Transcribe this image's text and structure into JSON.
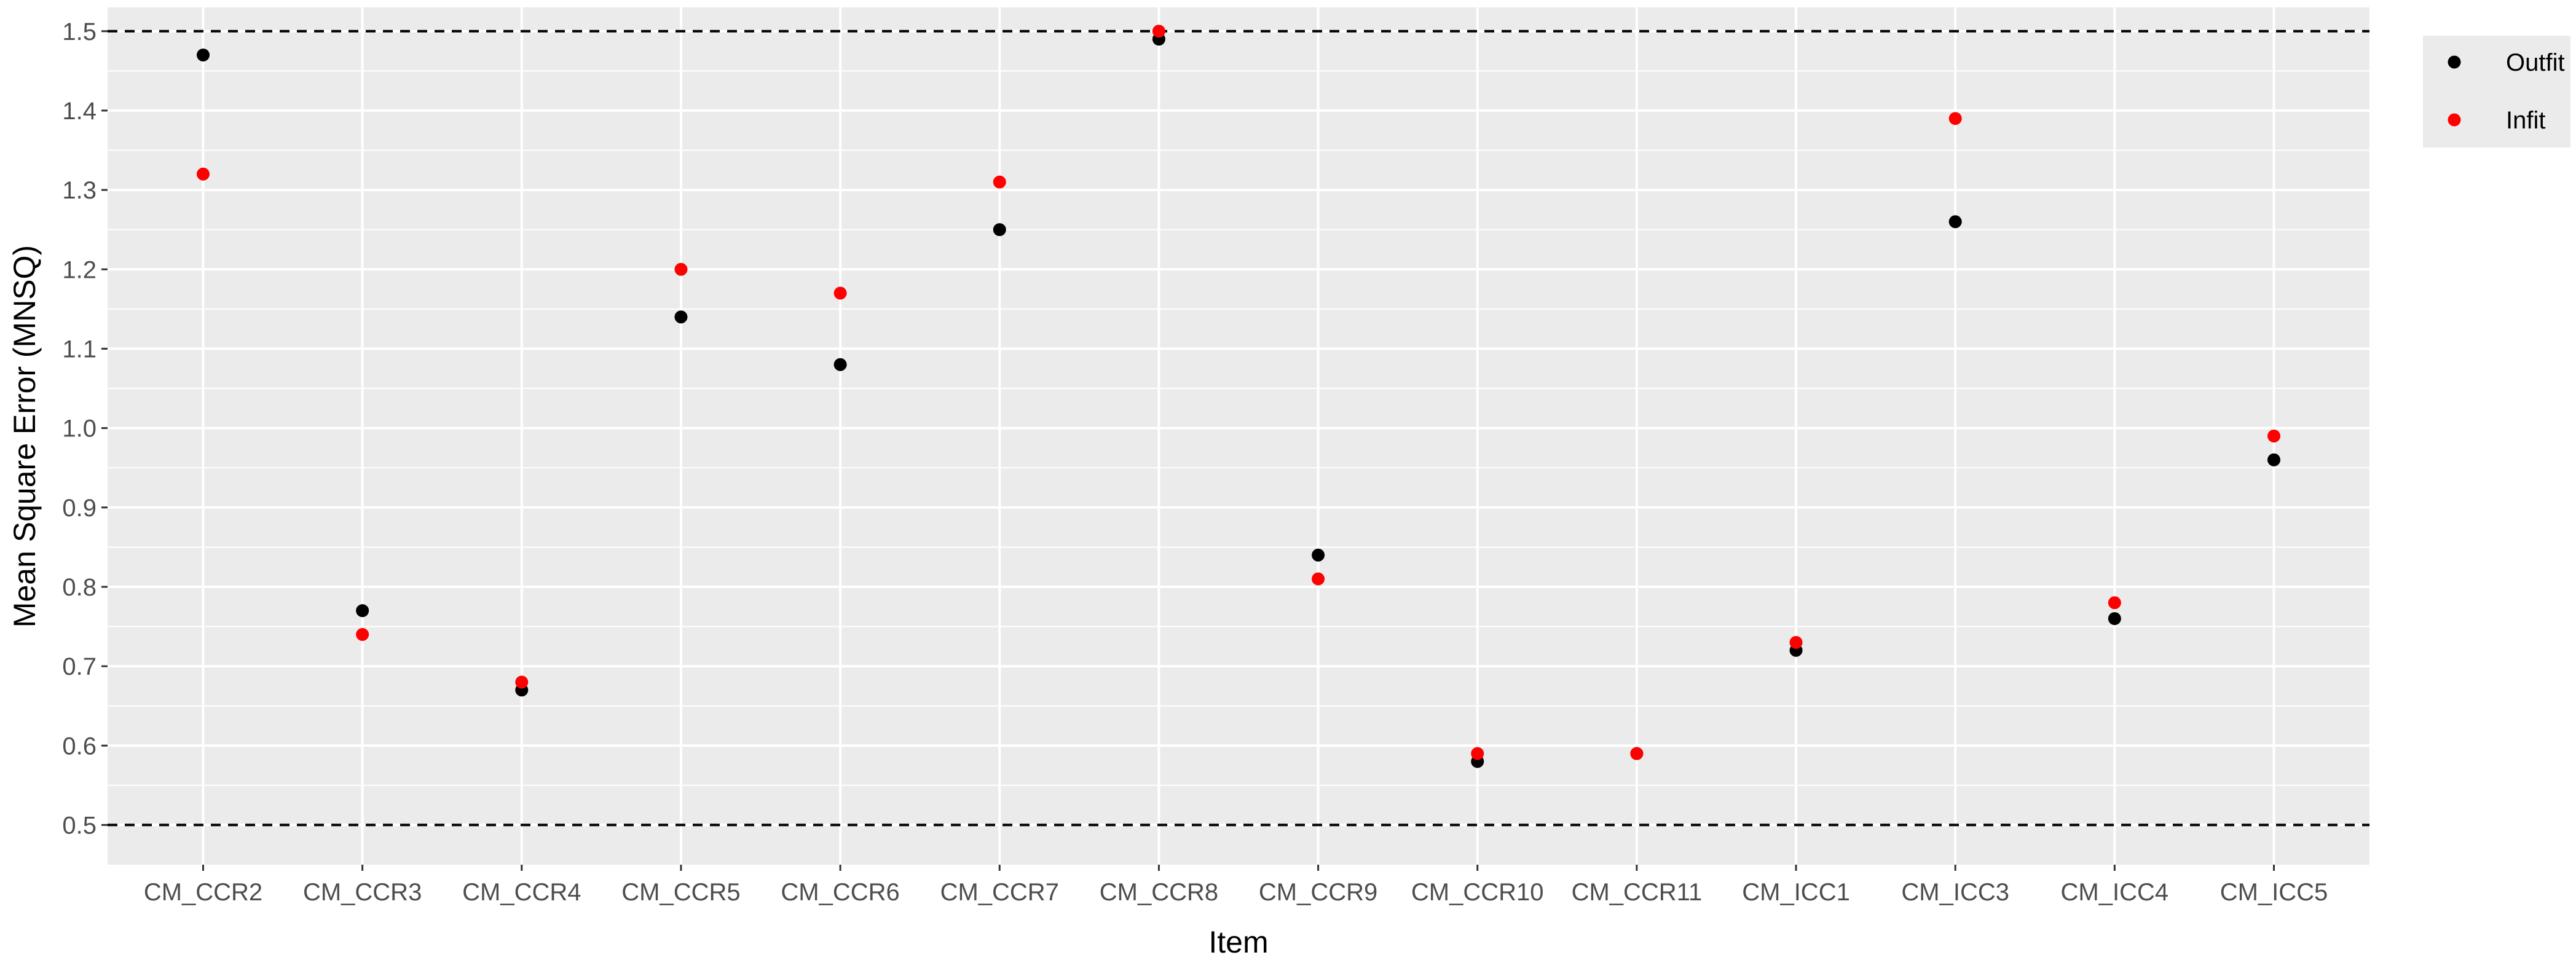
{
  "chart_data": {
    "type": "scatter",
    "title": "",
    "xlabel": "Item",
    "ylabel": "Mean Square Error (MNSQ)",
    "ylim": [
      0.45,
      1.53
    ],
    "yticks": [
      0.5,
      0.6,
      0.7,
      0.8,
      0.9,
      1.0,
      1.1,
      1.2,
      1.3,
      1.4,
      1.5
    ],
    "ytick_labels": [
      "0.5",
      "0.6",
      "0.7",
      "0.8",
      "0.9",
      "1.0",
      "1.1",
      "1.2",
      "1.3",
      "1.4",
      "1.5"
    ],
    "grid": true,
    "legend_position": "right",
    "reference_lines": [
      0.5,
      1.5
    ],
    "categories": [
      "CM_CCR2",
      "CM_CCR3",
      "CM_CCR4",
      "CM_CCR5",
      "CM_CCR6",
      "CM_CCR7",
      "CM_CCR8",
      "CM_CCR9",
      "CM_CCR10",
      "CM_CCR11",
      "CM_ICC1",
      "CM_ICC3",
      "CM_ICC4",
      "CM_ICC5"
    ],
    "series": [
      {
        "name": "Outfit",
        "color": "#000000",
        "values": [
          1.47,
          0.77,
          0.67,
          1.14,
          1.08,
          1.25,
          1.49,
          0.84,
          0.58,
          0.59,
          0.72,
          1.26,
          0.76,
          0.96
        ]
      },
      {
        "name": "Infit",
        "color": "#ff0000",
        "values": [
          1.32,
          0.74,
          0.68,
          1.2,
          1.17,
          1.31,
          1.5,
          0.81,
          0.59,
          0.59,
          0.73,
          1.39,
          0.78,
          0.99
        ]
      }
    ]
  }
}
